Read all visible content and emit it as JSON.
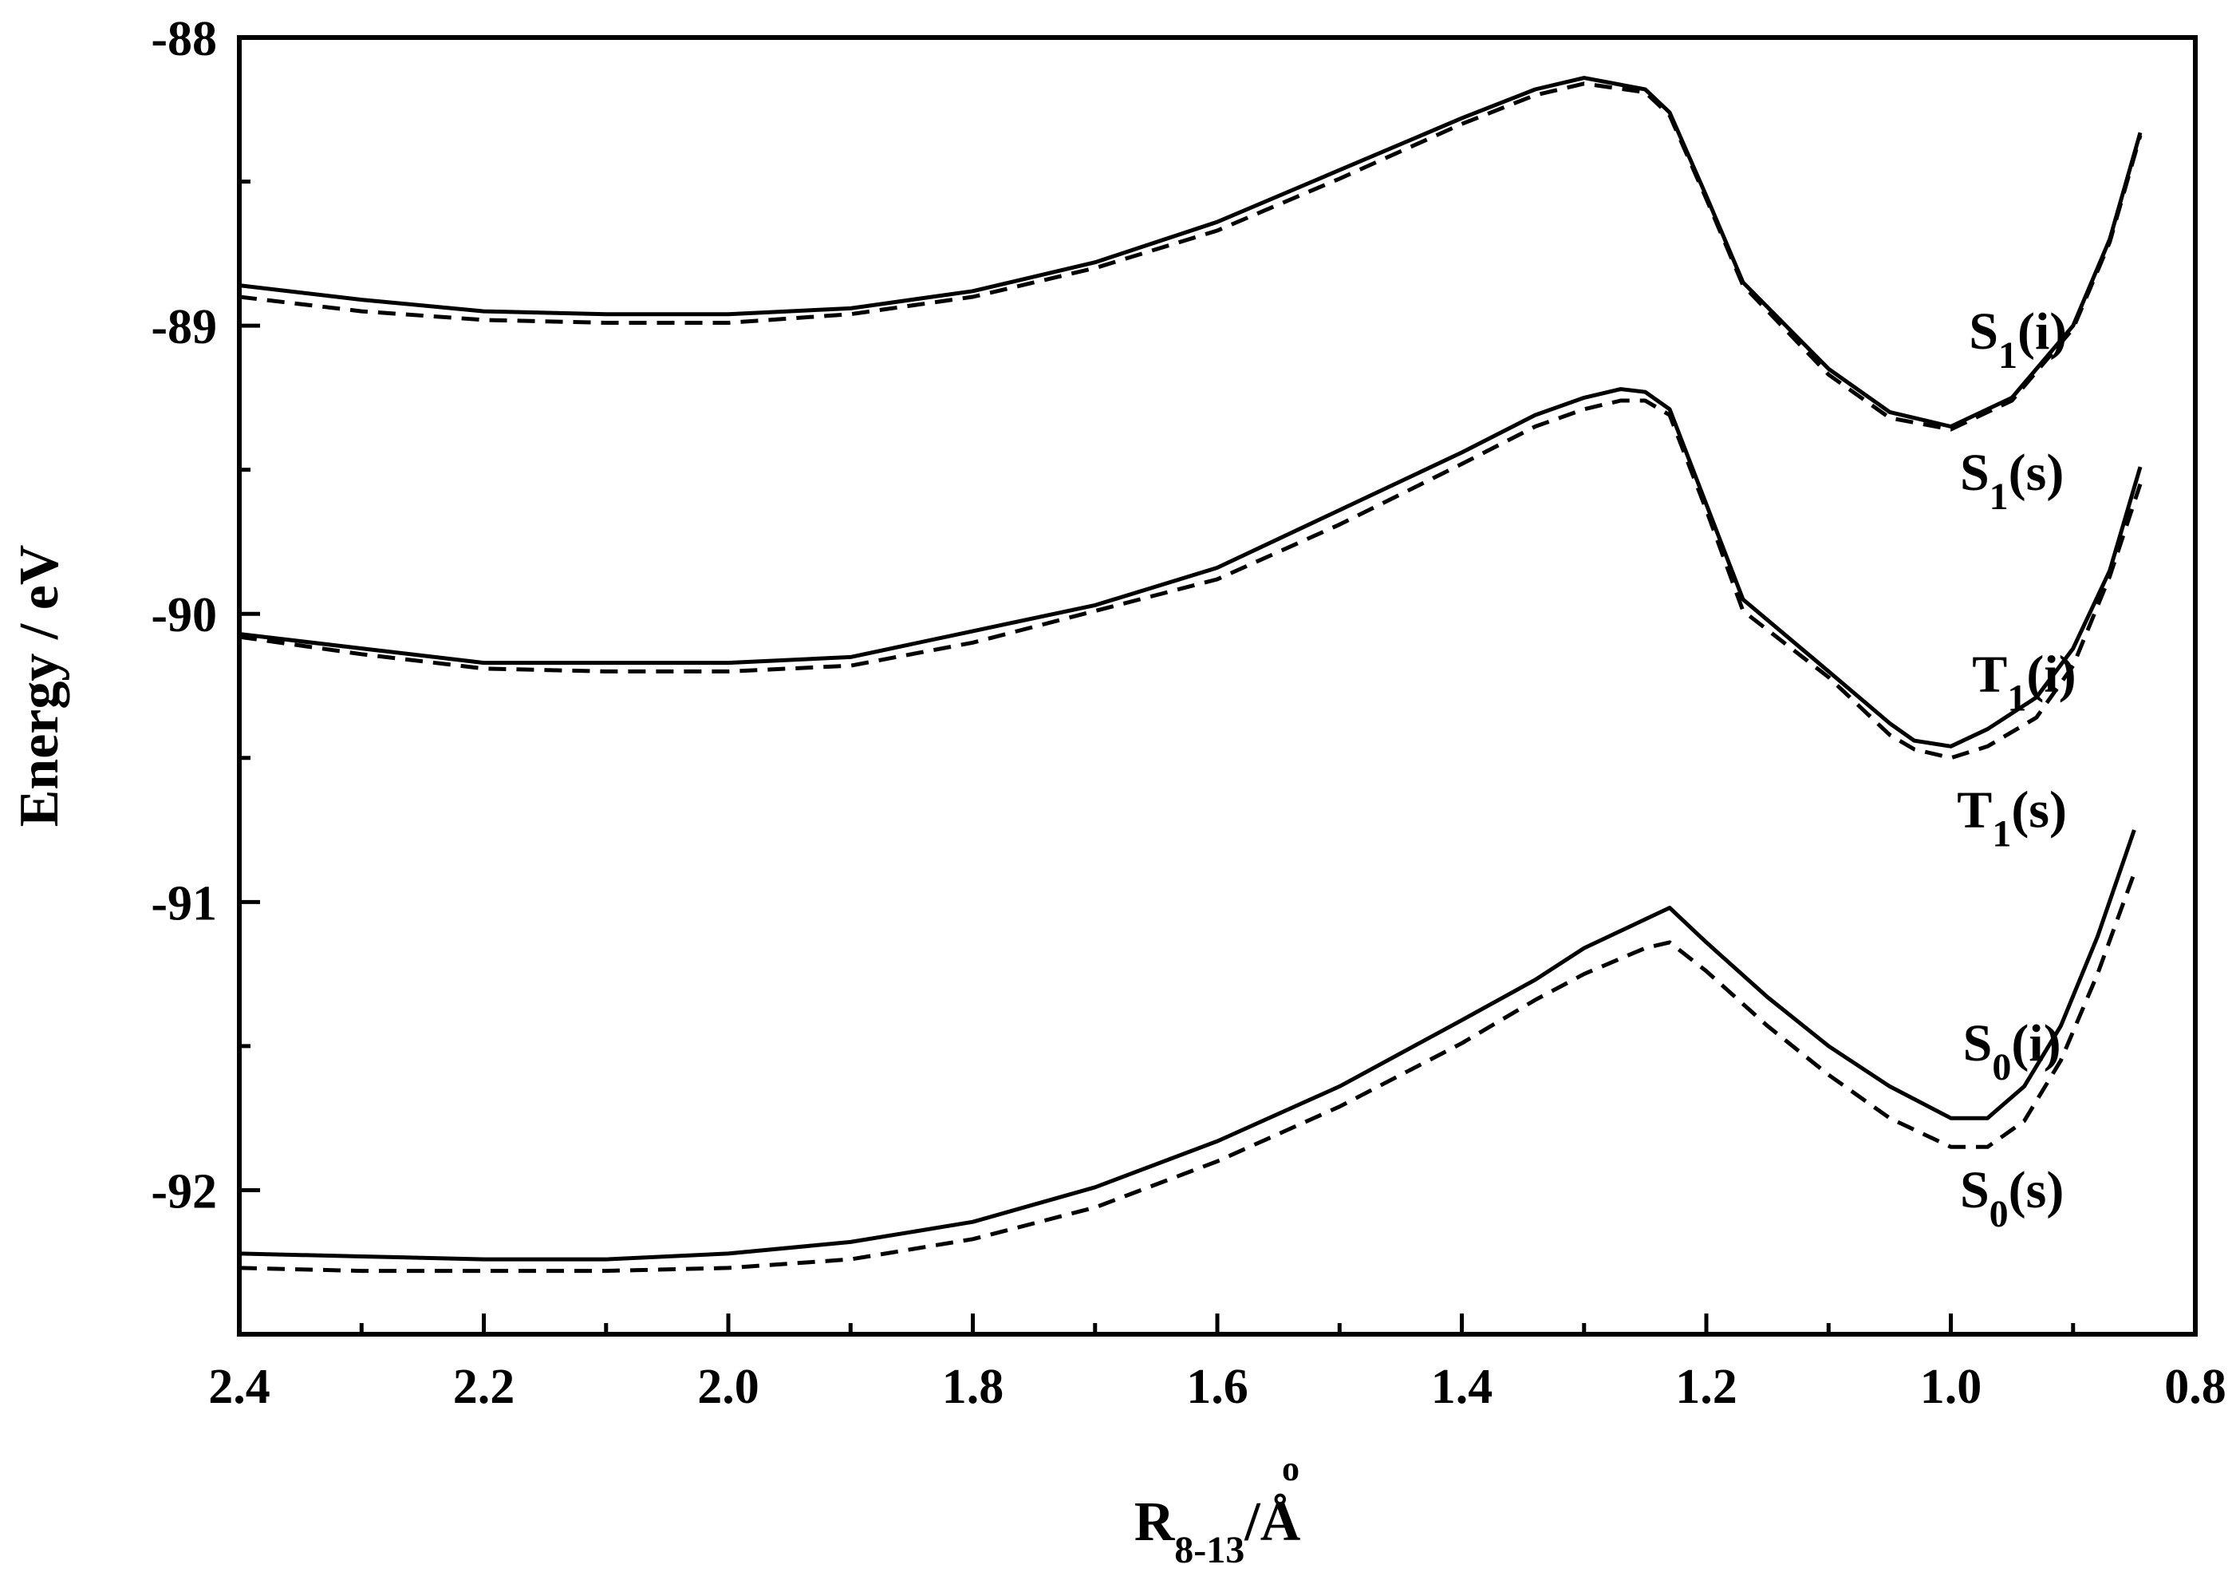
{
  "chart_data": {
    "type": "line",
    "title": "",
    "xlabel": {
      "main": "R",
      "sub": "8-13",
      "unit": "/Å",
      "ring": "o"
    },
    "ylabel": "Energy / eV",
    "xlim": [
      2.4,
      0.8
    ],
    "ylim": [
      -92.5,
      -88.0
    ],
    "x_ticks": [
      "2.4",
      "2.2",
      "2.0",
      "1.8",
      "1.6",
      "1.4",
      "1.2",
      "1.0",
      "0.8"
    ],
    "y_ticks": [
      "-88",
      "-89",
      "-90",
      "-91",
      "-92"
    ],
    "grid": false,
    "legend": "none",
    "colors": {
      "line": "#000000",
      "axis": "#000000",
      "background": "#ffffff"
    },
    "series": [
      {
        "label": {
          "main": "S",
          "sub": "1",
          "tail": "(i)"
        },
        "label_pos": {
          "x": 0.945,
          "y": -89.08
        },
        "style": "solid",
        "points": [
          [
            2.4,
            -88.86
          ],
          [
            2.3,
            -88.91
          ],
          [
            2.2,
            -88.95
          ],
          [
            2.1,
            -88.96
          ],
          [
            2.0,
            -88.96
          ],
          [
            1.9,
            -88.94
          ],
          [
            1.8,
            -88.88
          ],
          [
            1.7,
            -88.78
          ],
          [
            1.6,
            -88.64
          ],
          [
            1.5,
            -88.46
          ],
          [
            1.4,
            -88.28
          ],
          [
            1.34,
            -88.18
          ],
          [
            1.3,
            -88.14
          ],
          [
            1.25,
            -88.18
          ],
          [
            1.23,
            -88.26
          ],
          [
            1.2,
            -88.55
          ],
          [
            1.17,
            -88.85
          ],
          [
            1.1,
            -89.15
          ],
          [
            1.05,
            -89.3
          ],
          [
            1.0,
            -89.35
          ],
          [
            0.95,
            -89.25
          ],
          [
            0.9,
            -89.0
          ],
          [
            0.87,
            -88.7
          ],
          [
            0.845,
            -88.33
          ]
        ]
      },
      {
        "label": {
          "main": "S",
          "sub": "1",
          "tail": "(s)"
        },
        "label_pos": {
          "x": 0.95,
          "y": -89.57
        },
        "style": "dashed",
        "points": [
          [
            2.4,
            -88.9
          ],
          [
            2.3,
            -88.95
          ],
          [
            2.2,
            -88.98
          ],
          [
            2.1,
            -88.99
          ],
          [
            2.0,
            -88.99
          ],
          [
            1.9,
            -88.96
          ],
          [
            1.8,
            -88.9
          ],
          [
            1.7,
            -88.8
          ],
          [
            1.6,
            -88.67
          ],
          [
            1.5,
            -88.49
          ],
          [
            1.4,
            -88.3
          ],
          [
            1.34,
            -88.2
          ],
          [
            1.3,
            -88.16
          ],
          [
            1.25,
            -88.19
          ],
          [
            1.23,
            -88.27
          ],
          [
            1.2,
            -88.56
          ],
          [
            1.17,
            -88.86
          ],
          [
            1.1,
            -89.17
          ],
          [
            1.05,
            -89.32
          ],
          [
            1.0,
            -89.36
          ],
          [
            0.95,
            -89.26
          ],
          [
            0.9,
            -89.01
          ],
          [
            0.87,
            -88.71
          ],
          [
            0.845,
            -88.34
          ]
        ]
      },
      {
        "label": {
          "main": "T",
          "sub": "1",
          "tail": "(i)"
        },
        "label_pos": {
          "x": 0.94,
          "y": -90.27
        },
        "style": "solid",
        "points": [
          [
            2.4,
            -90.07
          ],
          [
            2.3,
            -90.12
          ],
          [
            2.2,
            -90.17
          ],
          [
            2.1,
            -90.17
          ],
          [
            2.0,
            -90.17
          ],
          [
            1.9,
            -90.15
          ],
          [
            1.8,
            -90.06
          ],
          [
            1.7,
            -89.97
          ],
          [
            1.6,
            -89.84
          ],
          [
            1.5,
            -89.64
          ],
          [
            1.4,
            -89.44
          ],
          [
            1.34,
            -89.31
          ],
          [
            1.3,
            -89.25
          ],
          [
            1.27,
            -89.22
          ],
          [
            1.25,
            -89.23
          ],
          [
            1.23,
            -89.29
          ],
          [
            1.2,
            -89.62
          ],
          [
            1.17,
            -89.95
          ],
          [
            1.1,
            -90.2
          ],
          [
            1.05,
            -90.38
          ],
          [
            1.03,
            -90.44
          ],
          [
            1.0,
            -90.46
          ],
          [
            0.97,
            -90.4
          ],
          [
            0.93,
            -90.29
          ],
          [
            0.9,
            -90.12
          ],
          [
            0.87,
            -89.85
          ],
          [
            0.845,
            -89.49
          ]
        ]
      },
      {
        "label": {
          "main": "T",
          "sub": "1",
          "tail": "(s)"
        },
        "label_pos": {
          "x": 0.95,
          "y": -90.74
        },
        "style": "dashed",
        "points": [
          [
            2.4,
            -90.08
          ],
          [
            2.3,
            -90.14
          ],
          [
            2.2,
            -90.19
          ],
          [
            2.1,
            -90.2
          ],
          [
            2.0,
            -90.2
          ],
          [
            1.9,
            -90.18
          ],
          [
            1.8,
            -90.1
          ],
          [
            1.7,
            -89.99
          ],
          [
            1.6,
            -89.88
          ],
          [
            1.5,
            -89.69
          ],
          [
            1.4,
            -89.48
          ],
          [
            1.34,
            -89.35
          ],
          [
            1.3,
            -89.29
          ],
          [
            1.27,
            -89.26
          ],
          [
            1.25,
            -89.26
          ],
          [
            1.23,
            -89.31
          ],
          [
            1.2,
            -89.64
          ],
          [
            1.17,
            -89.99
          ],
          [
            1.1,
            -90.22
          ],
          [
            1.05,
            -90.42
          ],
          [
            1.03,
            -90.47
          ],
          [
            1.0,
            -90.5
          ],
          [
            0.97,
            -90.46
          ],
          [
            0.93,
            -90.36
          ],
          [
            0.9,
            -90.18
          ],
          [
            0.87,
            -89.87
          ],
          [
            0.845,
            -89.55
          ]
        ]
      },
      {
        "label": {
          "main": "S",
          "sub": "0",
          "tail": "(i)"
        },
        "label_pos": {
          "x": 0.95,
          "y": -91.55
        },
        "style": "solid",
        "points": [
          [
            2.4,
            -92.22
          ],
          [
            2.3,
            -92.23
          ],
          [
            2.2,
            -92.24
          ],
          [
            2.1,
            -92.24
          ],
          [
            2.0,
            -92.22
          ],
          [
            1.9,
            -92.18
          ],
          [
            1.8,
            -92.11
          ],
          [
            1.7,
            -91.99
          ],
          [
            1.6,
            -91.83
          ],
          [
            1.5,
            -91.64
          ],
          [
            1.4,
            -91.41
          ],
          [
            1.34,
            -91.27
          ],
          [
            1.3,
            -91.16
          ],
          [
            1.25,
            -91.06
          ],
          [
            1.23,
            -91.02
          ],
          [
            1.2,
            -91.14
          ],
          [
            1.15,
            -91.33
          ],
          [
            1.1,
            -91.5
          ],
          [
            1.05,
            -91.64
          ],
          [
            1.0,
            -91.75
          ],
          [
            0.97,
            -91.75
          ],
          [
            0.94,
            -91.64
          ],
          [
            0.91,
            -91.43
          ],
          [
            0.88,
            -91.12
          ],
          [
            0.85,
            -90.75
          ]
        ]
      },
      {
        "label": {
          "main": "S",
          "sub": "0",
          "tail": "(s)"
        },
        "label_pos": {
          "x": 0.95,
          "y": -92.06
        },
        "style": "dashed",
        "points": [
          [
            2.4,
            -92.27
          ],
          [
            2.3,
            -92.28
          ],
          [
            2.2,
            -92.28
          ],
          [
            2.1,
            -92.28
          ],
          [
            2.0,
            -92.27
          ],
          [
            1.9,
            -92.24
          ],
          [
            1.8,
            -92.17
          ],
          [
            1.7,
            -92.06
          ],
          [
            1.6,
            -91.9
          ],
          [
            1.5,
            -91.71
          ],
          [
            1.4,
            -91.49
          ],
          [
            1.34,
            -91.34
          ],
          [
            1.3,
            -91.25
          ],
          [
            1.25,
            -91.16
          ],
          [
            1.23,
            -91.14
          ],
          [
            1.2,
            -91.24
          ],
          [
            1.15,
            -91.43
          ],
          [
            1.1,
            -91.6
          ],
          [
            1.05,
            -91.75
          ],
          [
            1.0,
            -91.85
          ],
          [
            0.97,
            -91.85
          ],
          [
            0.94,
            -91.76
          ],
          [
            0.91,
            -91.55
          ],
          [
            0.88,
            -91.25
          ],
          [
            0.85,
            -90.9
          ]
        ]
      }
    ]
  }
}
